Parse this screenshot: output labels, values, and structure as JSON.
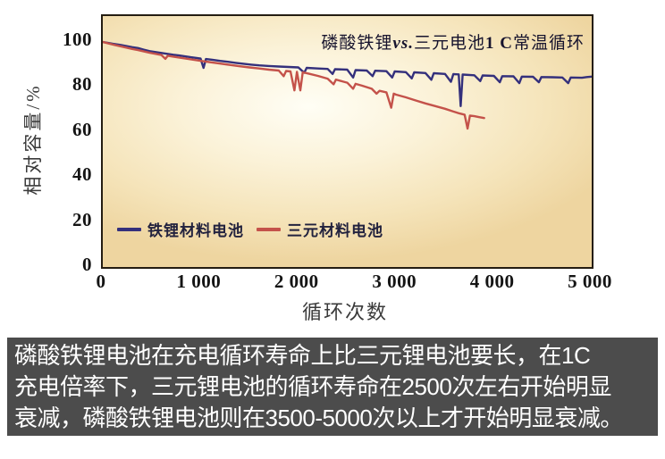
{
  "colors": {
    "lfp_line": "#34307c",
    "ncm_line": "#c4524a",
    "caption_bg": "#4c4c4c",
    "caption_text": "#ffffff",
    "plot_border": "#241d12",
    "plot_bg_center": "#fffef5",
    "plot_bg_edge": "#eed5a0"
  },
  "chart": {
    "title_parts": {
      "p1": "磷酸铁锂",
      "p2": "vs.",
      "p3": "三元电池",
      "p4": "1 C",
      "p5": "常温循环"
    },
    "ylabel": "相对容量/%",
    "xlabel": "循环次数"
  },
  "chart_data": {
    "type": "line",
    "title": "磷酸铁锂vs.三元电池1 C常温循环",
    "xlabel": "循环次数",
    "ylabel": "相对容量/%",
    "xlim": [
      0,
      5000
    ],
    "ylim": [
      0,
      111.5
    ],
    "x_ticks": [
      0,
      1000,
      2000,
      3000,
      4000,
      5000
    ],
    "x_tick_labels": [
      "0",
      "1 000",
      "2 000",
      "3 000",
      "4 000",
      "5 000"
    ],
    "y_ticks": [
      0,
      20,
      40,
      60,
      80,
      100
    ],
    "y_tick_labels": [
      "0",
      "20",
      "40",
      "60",
      "80",
      "100"
    ],
    "grid": false,
    "legend_position": "inside-lower-left",
    "series": [
      {
        "name": "铁锂材料电池",
        "color": "#34307c",
        "points": [
          [
            0,
            100
          ],
          [
            60,
            99.5
          ],
          [
            120,
            99.1
          ],
          [
            180,
            98.7
          ],
          [
            240,
            98.2
          ],
          [
            300,
            97.7
          ],
          [
            360,
            97.3
          ],
          [
            420,
            96.6
          ],
          [
            480,
            95.9
          ],
          [
            540,
            95.5
          ],
          [
            600,
            95.1
          ],
          [
            660,
            94.7
          ],
          [
            720,
            94.3
          ],
          [
            780,
            94.0
          ],
          [
            840,
            93.6
          ],
          [
            900,
            93.2
          ],
          [
            960,
            92.9
          ],
          [
            1000,
            92.6
          ],
          [
            1030,
            88.5
          ],
          [
            1055,
            92.4
          ],
          [
            1120,
            92.1
          ],
          [
            1200,
            91.6
          ],
          [
            1280,
            91.2
          ],
          [
            1360,
            90.7
          ],
          [
            1440,
            90.3
          ],
          [
            1520,
            89.9
          ],
          [
            1600,
            89.6
          ],
          [
            1700,
            89.3
          ],
          [
            1800,
            89.1
          ],
          [
            1900,
            88.9
          ],
          [
            2000,
            88.7
          ],
          [
            2060,
            86.3
          ],
          [
            2085,
            88.5
          ],
          [
            2200,
            88.2
          ],
          [
            2300,
            88.0
          ],
          [
            2350,
            85.8
          ],
          [
            2375,
            87.9
          ],
          [
            2500,
            87.7
          ],
          [
            2560,
            84.2
          ],
          [
            2585,
            87.5
          ],
          [
            2700,
            87.3
          ],
          [
            2760,
            84.8
          ],
          [
            2785,
            87.2
          ],
          [
            2900,
            87.0
          ],
          [
            2960,
            84.2
          ],
          [
            2985,
            86.9
          ],
          [
            3100,
            86.6
          ],
          [
            3160,
            83.8
          ],
          [
            3185,
            86.5
          ],
          [
            3300,
            86.2
          ],
          [
            3360,
            83.2
          ],
          [
            3385,
            86.1
          ],
          [
            3500,
            85.8
          ],
          [
            3560,
            82.3
          ],
          [
            3585,
            85.7
          ],
          [
            3640,
            85.6
          ],
          [
            3660,
            71.5
          ],
          [
            3680,
            85.5
          ],
          [
            3800,
            85.2
          ],
          [
            3860,
            82.6
          ],
          [
            3885,
            85.1
          ],
          [
            4000,
            84.9
          ],
          [
            4060,
            82.1
          ],
          [
            4085,
            84.8
          ],
          [
            4200,
            84.7
          ],
          [
            4260,
            81.7
          ],
          [
            4285,
            84.6
          ],
          [
            4400,
            84.5
          ],
          [
            4460,
            82.1
          ],
          [
            4485,
            84.4
          ],
          [
            4600,
            84.3
          ],
          [
            4700,
            84.2
          ],
          [
            4760,
            81.7
          ],
          [
            4785,
            84.2
          ],
          [
            4900,
            84.1
          ],
          [
            4950,
            84.4
          ],
          [
            5000,
            84.6
          ]
        ]
      },
      {
        "name": "三元材料电池",
        "color": "#c4524a",
        "points": [
          [
            0,
            100
          ],
          [
            60,
            99.3
          ],
          [
            120,
            98.7
          ],
          [
            180,
            98.1
          ],
          [
            240,
            97.5
          ],
          [
            300,
            96.9
          ],
          [
            360,
            96.4
          ],
          [
            420,
            95.8
          ],
          [
            480,
            95.2
          ],
          [
            540,
            94.7
          ],
          [
            600,
            94.2
          ],
          [
            640,
            92.5
          ],
          [
            665,
            93.9
          ],
          [
            720,
            93.5
          ],
          [
            780,
            93.1
          ],
          [
            840,
            92.7
          ],
          [
            900,
            92.3
          ],
          [
            960,
            91.9
          ],
          [
            1020,
            91.5
          ],
          [
            1100,
            91.0
          ],
          [
            1200,
            90.4
          ],
          [
            1300,
            89.8
          ],
          [
            1400,
            89.2
          ],
          [
            1500,
            88.7
          ],
          [
            1600,
            88.2
          ],
          [
            1700,
            87.7
          ],
          [
            1800,
            87.3
          ],
          [
            1850,
            84.8
          ],
          [
            1875,
            87.1
          ],
          [
            1920,
            86.9
          ],
          [
            1960,
            78.5
          ],
          [
            1985,
            86.7
          ],
          [
            2020,
            78.5
          ],
          [
            2045,
            86.5
          ],
          [
            2100,
            86.0
          ],
          [
            2200,
            84.9
          ],
          [
            2300,
            83.7
          ],
          [
            2360,
            81.2
          ],
          [
            2385,
            83.3
          ],
          [
            2450,
            82.5
          ],
          [
            2500,
            81.9
          ],
          [
            2560,
            79.2
          ],
          [
            2585,
            81.4
          ],
          [
            2650,
            80.6
          ],
          [
            2700,
            79.9
          ],
          [
            2750,
            79.2
          ],
          [
            2800,
            77.0
          ],
          [
            2830,
            78.3
          ],
          [
            2900,
            77.6
          ],
          [
            2950,
            70.8
          ],
          [
            2975,
            77.0
          ],
          [
            3000,
            76.6
          ],
          [
            3100,
            75.4
          ],
          [
            3200,
            74.0
          ],
          [
            3300,
            72.7
          ],
          [
            3400,
            71.5
          ],
          [
            3500,
            70.3
          ],
          [
            3600,
            68.9
          ],
          [
            3650,
            68.2
          ],
          [
            3700,
            67.7
          ],
          [
            3730,
            61.5
          ],
          [
            3755,
            67.3
          ],
          [
            3800,
            67.0
          ],
          [
            3850,
            66.6
          ],
          [
            3900,
            66.2
          ]
        ]
      }
    ]
  },
  "caption": {
    "lines": [
      "磷酸铁锂电池在充电循环寿命上比三元锂电池要长，在1C",
      "充电倍率下，三元锂电池的循环寿命在2500次左右开始明显",
      "衰减，磷酸铁锂电池则在3500-5000次以上才开始明显衰减。"
    ]
  }
}
